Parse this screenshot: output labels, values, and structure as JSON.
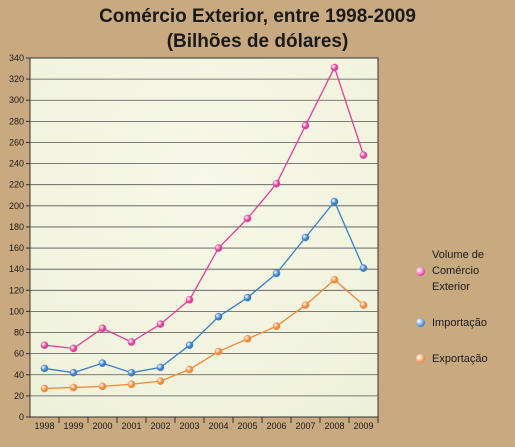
{
  "chart_data": {
    "type": "line",
    "title": "Comércio Exterior, entre 1998-2009",
    "subtitle": "(Bilhões de dólares)",
    "categories": [
      "1998",
      "1999",
      "2000",
      "2001",
      "2002",
      "2003",
      "2004",
      "2005",
      "2006",
      "2007",
      "2008",
      "2009"
    ],
    "ylim": [
      0,
      340
    ],
    "yticks": [
      0,
      20,
      40,
      60,
      80,
      100,
      120,
      140,
      160,
      180,
      200,
      220,
      240,
      260,
      280,
      300,
      320,
      340
    ],
    "grid": true,
    "legend_position": "right",
    "series": [
      {
        "name": "Volume de Comércio Exterior",
        "color": "#e0409a",
        "values": [
          68,
          65,
          84,
          71,
          88,
          111,
          160,
          188,
          221,
          276,
          331,
          248
        ]
      },
      {
        "name": "Importação",
        "color": "#3b7fc4",
        "values": [
          46,
          42,
          51,
          42,
          47,
          68,
          95,
          113,
          136,
          170,
          204,
          141
        ]
      },
      {
        "name": "Exportação",
        "color": "#f0883a",
        "values": [
          27,
          28,
          29,
          31,
          34,
          45,
          62,
          74,
          86,
          106,
          130,
          106
        ]
      }
    ]
  },
  "legend": {
    "volume_label_lines": [
      "Volume de",
      "Comércio",
      "Exterior"
    ],
    "importacao_label": "Importação",
    "exportacao_label": "Exportação"
  }
}
